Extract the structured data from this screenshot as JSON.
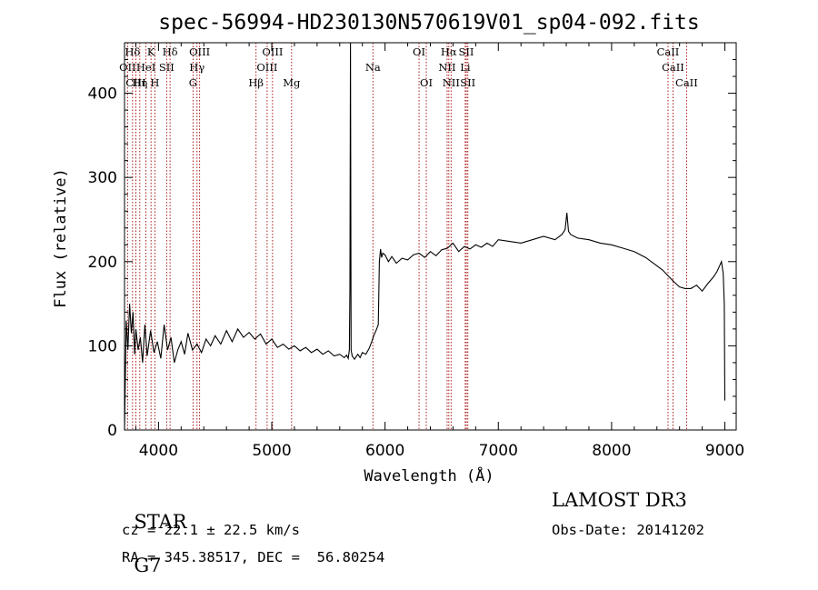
{
  "chart_data": {
    "type": "line",
    "title": "spec-56994-HD230130N570619V01_sp04-092.fits",
    "xlabel": "Wavelength (Å)",
    "ylabel": "Flux (relative)",
    "xlim": [
      3700,
      9100
    ],
    "ylim": [
      0,
      460
    ],
    "xticks": [
      4000,
      5000,
      6000,
      7000,
      8000,
      9000
    ],
    "yticks": [
      0,
      100,
      200,
      300,
      400
    ],
    "spectral_lines": [
      {
        "name": "Hδ",
        "wavelength": 3771,
        "row": 0
      },
      {
        "name": "K",
        "wavelength": 3934,
        "row": 0
      },
      {
        "name": "Hδ",
        "wavelength": 4102,
        "row": 0
      },
      {
        "name": "OIII",
        "wavelength": 4363,
        "row": 0
      },
      {
        "name": "OIII",
        "wavelength": 5007,
        "row": 0
      },
      {
        "name": "OI",
        "wavelength": 6300,
        "row": 0
      },
      {
        "name": "Hα",
        "wavelength": 6563,
        "row": 0
      },
      {
        "name": "SII",
        "wavelength": 6717,
        "row": 0
      },
      {
        "name": "CaII",
        "wavelength": 8498,
        "row": 0
      },
      {
        "name": "OII",
        "wavelength": 3727,
        "row": 1
      },
      {
        "name": "HeI",
        "wavelength": 3889,
        "row": 1
      },
      {
        "name": "SII",
        "wavelength": 4072,
        "row": 1
      },
      {
        "name": "Hγ",
        "wavelength": 4340,
        "row": 1
      },
      {
        "name": "OIII",
        "wavelength": 4959,
        "row": 1
      },
      {
        "name": "Na",
        "wavelength": 5893,
        "row": 1
      },
      {
        "name": "NII",
        "wavelength": 6548,
        "row": 1
      },
      {
        "name": "Li",
        "wavelength": 6708,
        "row": 1
      },
      {
        "name": "CaII",
        "wavelength": 8542,
        "row": 1
      },
      {
        "name": "CIII",
        "wavelength": 3800,
        "row": 2
      },
      {
        "name": "Hη",
        "wavelength": 3835,
        "row": 2
      },
      {
        "name": "H",
        "wavelength": 3968,
        "row": 2
      },
      {
        "name": "G",
        "wavelength": 4305,
        "row": 2
      },
      {
        "name": "Hβ",
        "wavelength": 4861,
        "row": 2
      },
      {
        "name": "Mg",
        "wavelength": 5175,
        "row": 2
      },
      {
        "name": "OI",
        "wavelength": 6364,
        "row": 2
      },
      {
        "name": "NII",
        "wavelength": 6583,
        "row": 2
      },
      {
        "name": "SII",
        "wavelength": 6731,
        "row": 2
      },
      {
        "name": "CaII",
        "wavelength": 8662,
        "row": 2
      }
    ],
    "series": [
      {
        "name": "flux",
        "x": [
          3700,
          3715,
          3730,
          3745,
          3760,
          3775,
          3790,
          3800,
          3820,
          3840,
          3860,
          3880,
          3900,
          3930,
          3960,
          3990,
          4020,
          4050,
          4080,
          4110,
          4140,
          4170,
          4200,
          4230,
          4260,
          4300,
          4340,
          4380,
          4420,
          4460,
          4500,
          4550,
          4600,
          4650,
          4700,
          4750,
          4800,
          4850,
          4900,
          4950,
          5000,
          5050,
          5100,
          5150,
          5200,
          5250,
          5300,
          5350,
          5400,
          5450,
          5500,
          5550,
          5600,
          5640,
          5660,
          5675,
          5685,
          5690,
          5695,
          5700,
          5710,
          5730,
          5760,
          5780,
          5800,
          5830,
          5860,
          5880,
          5900,
          5920,
          5940,
          5950,
          5960,
          5970,
          5980,
          6000,
          6030,
          6060,
          6100,
          6150,
          6200,
          6250,
          6300,
          6350,
          6400,
          6450,
          6500,
          6550,
          6600,
          6650,
          6700,
          6750,
          6800,
          6850,
          6900,
          6950,
          7000,
          7100,
          7200,
          7300,
          7400,
          7500,
          7560,
          7590,
          7605,
          7620,
          7640,
          7700,
          7800,
          7900,
          8000,
          8100,
          8200,
          8300,
          8400,
          8450,
          8500,
          8550,
          8600,
          8650,
          8700,
          8750,
          8800,
          8850,
          8900,
          8930,
          8950,
          8970,
          8985,
          8995,
          9000
        ],
        "values": [
          0,
          130,
          95,
          150,
          115,
          140,
          90,
          120,
          95,
          110,
          80,
          125,
          88,
          118,
          92,
          105,
          85,
          125,
          95,
          110,
          80,
          95,
          105,
          90,
          115,
          95,
          102,
          92,
          108,
          100,
          112,
          102,
          118,
          105,
          120,
          110,
          116,
          108,
          114,
          102,
          108,
          98,
          102,
          96,
          100,
          94,
          98,
          92,
          96,
          90,
          94,
          88,
          90,
          86,
          89,
          85,
          95,
          170,
          460,
          95,
          88,
          84,
          90,
          86,
          92,
          90,
          97,
          104,
          112,
          118,
          125,
          200,
          215,
          205,
          210,
          208,
          200,
          206,
          198,
          204,
          202,
          208,
          210,
          205,
          212,
          207,
          214,
          216,
          222,
          212,
          218,
          215,
          220,
          217,
          222,
          218,
          226,
          224,
          222,
          226,
          230,
          226,
          232,
          238,
          258,
          236,
          232,
          228,
          226,
          222,
          220,
          216,
          212,
          205,
          195,
          190,
          183,
          176,
          170,
          168,
          168,
          172,
          165,
          174,
          182,
          188,
          194,
          200,
          186,
          150,
          35
        ]
      }
    ],
    "object_type": "STAR",
    "subclass": "G7",
    "survey": "LAMOST DR3",
    "cz_text": "cz = 22.1 ± 22.5 km/s",
    "coords_text": "RA = 345.38517, DEC =  56.80254",
    "obs_date_text": "Obs-Date: 20141202",
    "colors": {
      "line_marker": "#a00000",
      "spectrum": "#000000"
    }
  }
}
